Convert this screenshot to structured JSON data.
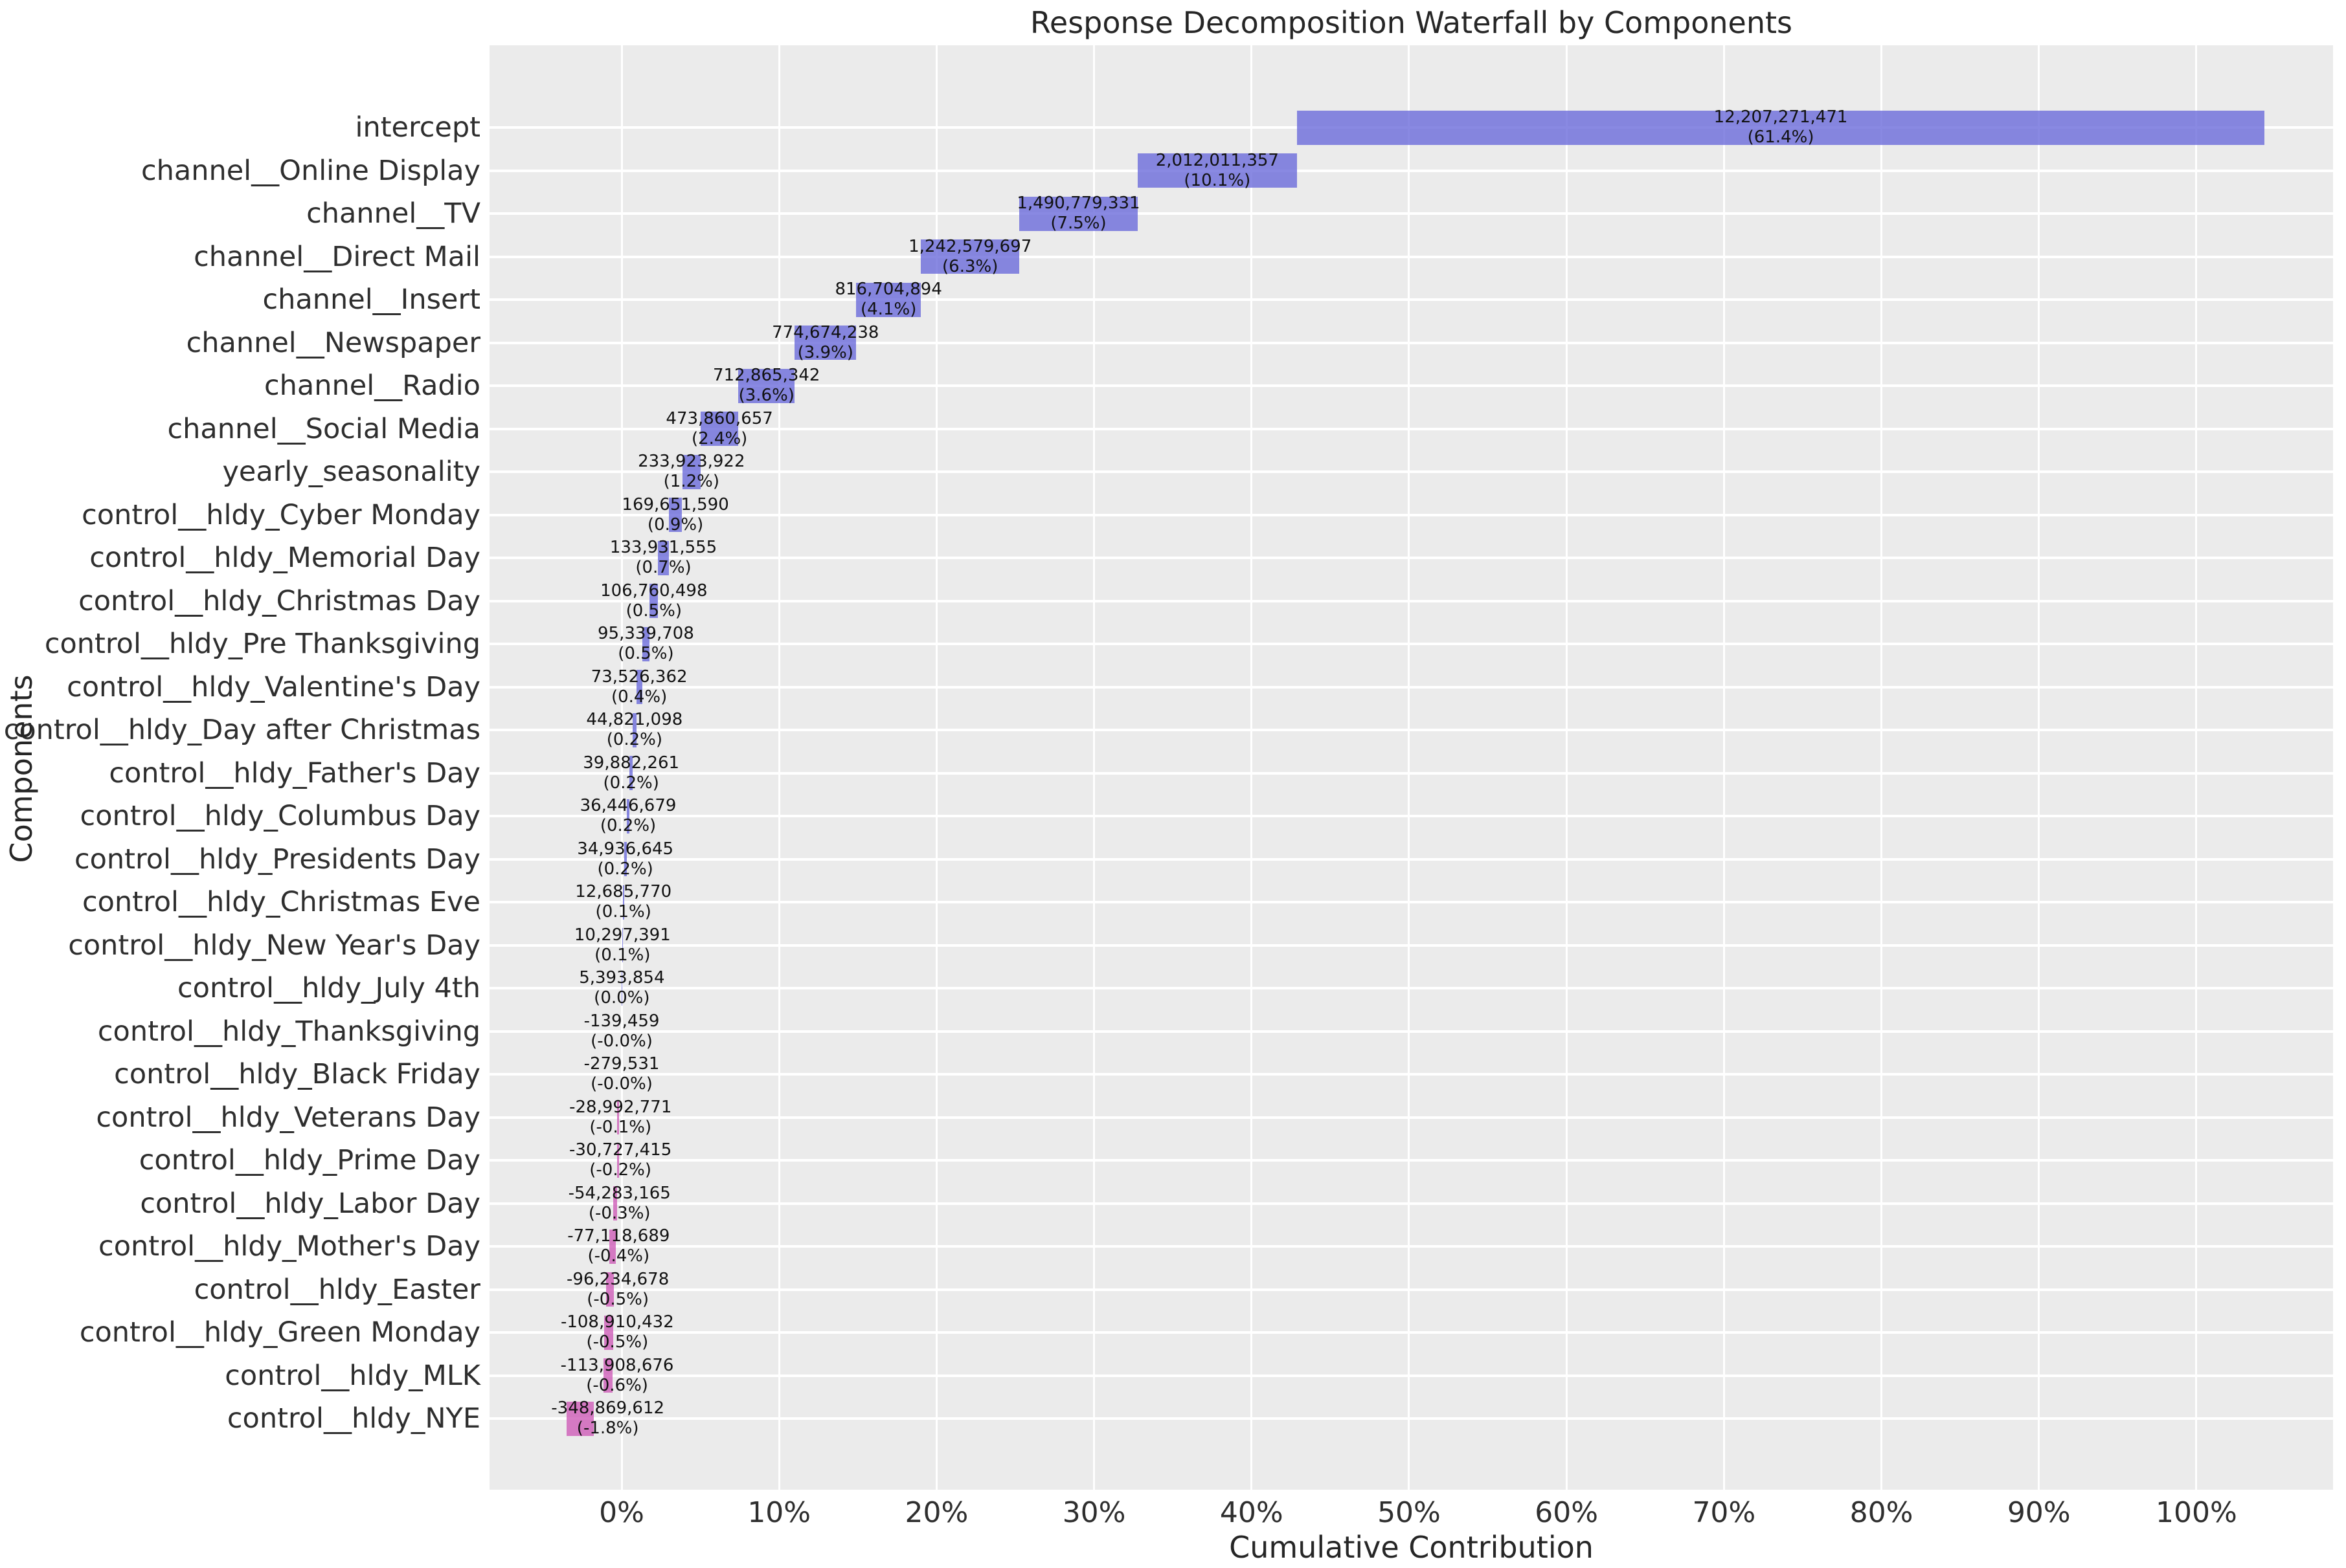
{
  "chart_data": {
    "type": "bar",
    "subtype": "waterfall",
    "orientation": "horizontal",
    "title": "Response Decomposition Waterfall by Components",
    "xlabel": "Cumulative Contribution",
    "ylabel": "Components",
    "grid": true,
    "legend": false,
    "xlim_pct": [
      -8.39,
      108.68
    ],
    "x_ticks": [
      {
        "value": 0,
        "label": "0%"
      },
      {
        "value": 10,
        "label": "10%"
      },
      {
        "value": 20,
        "label": "20%"
      },
      {
        "value": 30,
        "label": "30%"
      },
      {
        "value": 40,
        "label": "40%"
      },
      {
        "value": 50,
        "label": "50%"
      },
      {
        "value": 60,
        "label": "60%"
      },
      {
        "value": 70,
        "label": "70%"
      },
      {
        "value": 80,
        "label": "80%"
      },
      {
        "value": 90,
        "label": "90%"
      },
      {
        "value": 100,
        "label": "100%"
      }
    ],
    "colors": {
      "positive_bar": "rgba(108,108,219,0.8)",
      "negative_bar": "rgba(206,93,184,0.8)",
      "plot_background": "#ebebeb",
      "gridline": "#ffffff",
      "text": "#262626"
    },
    "components": [
      {
        "label": "intercept",
        "value": 12207271471,
        "value_label": "12,207,271,471",
        "pct_label": "(61.4%)"
      },
      {
        "label": "channel__Online Display",
        "value": 2012011357,
        "value_label": "2,012,011,357",
        "pct_label": "(10.1%)"
      },
      {
        "label": "channel__TV",
        "value": 1490779331,
        "value_label": "1,490,779,331",
        "pct_label": "(7.5%)"
      },
      {
        "label": "channel__Direct Mail",
        "value": 1242579697,
        "value_label": "1,242,579,697",
        "pct_label": "(6.3%)"
      },
      {
        "label": "channel__Insert",
        "value": 816704894,
        "value_label": "816,704,894",
        "pct_label": "(4.1%)"
      },
      {
        "label": "channel__Newspaper",
        "value": 774674238,
        "value_label": "774,674,238",
        "pct_label": "(3.9%)"
      },
      {
        "label": "channel__Radio",
        "value": 712865342,
        "value_label": "712,865,342",
        "pct_label": "(3.6%)"
      },
      {
        "label": "channel__Social Media",
        "value": 473860657,
        "value_label": "473,860,657",
        "pct_label": "(2.4%)"
      },
      {
        "label": "yearly_seasonality",
        "value": 233923922,
        "value_label": "233,923,922",
        "pct_label": "(1.2%)"
      },
      {
        "label": "control__hldy_Cyber Monday",
        "value": 169651590,
        "value_label": "169,651,590",
        "pct_label": "(0.9%)"
      },
      {
        "label": "control__hldy_Memorial Day",
        "value": 133931555,
        "value_label": "133,931,555",
        "pct_label": "(0.7%)"
      },
      {
        "label": "control__hldy_Christmas Day",
        "value": 106760498,
        "value_label": "106,760,498",
        "pct_label": "(0.5%)"
      },
      {
        "label": "control__hldy_Pre Thanksgiving",
        "value": 95339708,
        "value_label": "95,339,708",
        "pct_label": "(0.5%)"
      },
      {
        "label": "control__hldy_Valentine's Day",
        "value": 73526362,
        "value_label": "73,526,362",
        "pct_label": "(0.4%)"
      },
      {
        "label": "control__hldy_Day after Christmas",
        "value": 44821098,
        "value_label": "44,821,098",
        "pct_label": "(0.2%)"
      },
      {
        "label": "control__hldy_Father's Day",
        "value": 39882261,
        "value_label": "39,882,261",
        "pct_label": "(0.2%)"
      },
      {
        "label": "control__hldy_Columbus Day",
        "value": 36446679,
        "value_label": "36,446,679",
        "pct_label": "(0.2%)"
      },
      {
        "label": "control__hldy_Presidents Day",
        "value": 34936645,
        "value_label": "34,936,645",
        "pct_label": "(0.2%)"
      },
      {
        "label": "control__hldy_Christmas Eve",
        "value": 12685770,
        "value_label": "12,685,770",
        "pct_label": "(0.1%)"
      },
      {
        "label": "control__hldy_New Year's Day",
        "value": 10297391,
        "value_label": "10,297,391",
        "pct_label": "(0.1%)"
      },
      {
        "label": "control__hldy_July 4th",
        "value": 5393854,
        "value_label": "5,393,854",
        "pct_label": "(0.0%)"
      },
      {
        "label": "control__hldy_Thanksgiving",
        "value": -139459,
        "value_label": "-139,459",
        "pct_label": "(-0.0%)"
      },
      {
        "label": "control__hldy_Black Friday",
        "value": -279531,
        "value_label": "-279,531",
        "pct_label": "(-0.0%)"
      },
      {
        "label": "control__hldy_Veterans Day",
        "value": -28992771,
        "value_label": "-28,992,771",
        "pct_label": "(-0.1%)"
      },
      {
        "label": "control__hldy_Prime Day",
        "value": -30727415,
        "value_label": "-30,727,415",
        "pct_label": "(-0.2%)"
      },
      {
        "label": "control__hldy_Labor Day",
        "value": -54283165,
        "value_label": "-54,283,165",
        "pct_label": "(-0.3%)"
      },
      {
        "label": "control__hldy_Mother's Day",
        "value": -77118689,
        "value_label": "-77,118,689",
        "pct_label": "(-0.4%)"
      },
      {
        "label": "control__hldy_Easter",
        "value": -96234678,
        "value_label": "-96,234,678",
        "pct_label": "(-0.5%)"
      },
      {
        "label": "control__hldy_Green Monday",
        "value": -108910432,
        "value_label": "-108,910,432",
        "pct_label": "(-0.5%)"
      },
      {
        "label": "control__hldy_MLK",
        "value": -113908676,
        "value_label": "-113,908,676",
        "pct_label": "(-0.6%)"
      },
      {
        "label": "control__hldy_NYE",
        "value": -348869612,
        "value_label": "-348,869,612",
        "pct_label": "(-1.8%)"
      }
    ]
  }
}
